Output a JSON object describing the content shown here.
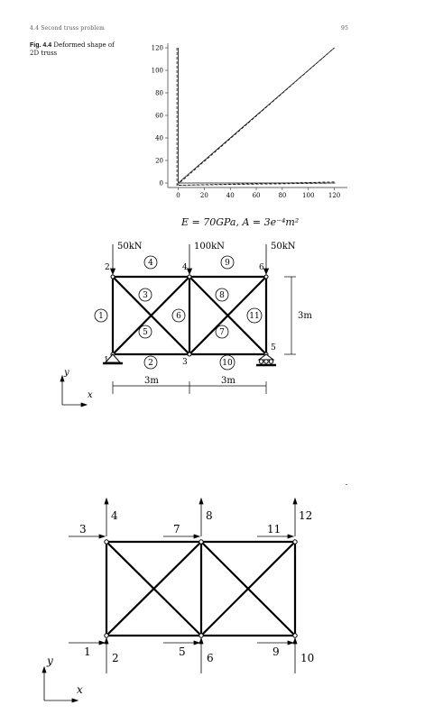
{
  "header": {
    "left": "4.4 Second truss problem",
    "right": "95"
  },
  "figure_caption": {
    "label": "Fig. 4.4",
    "text": "Deformed shape of 2D truss"
  },
  "chart_data": {
    "type": "line",
    "title": "",
    "xlabel": "",
    "ylabel": "",
    "xlim": [
      -8,
      130
    ],
    "ylim": [
      -4,
      124
    ],
    "x_ticks": [
      "0",
      "20",
      "40",
      "60",
      "80",
      "100",
      "120"
    ],
    "y_ticks": [
      "0",
      "20",
      "40",
      "60",
      "80",
      "100",
      "120"
    ],
    "series": [
      {
        "style": "solid",
        "points": [
          [
            0,
            120
          ],
          [
            0,
            0
          ]
        ]
      },
      {
        "style": "solid",
        "points": [
          [
            0,
            0
          ],
          [
            120,
            120
          ]
        ]
      },
      {
        "style": "solid",
        "points": [
          [
            0,
            0
          ],
          [
            120,
            0
          ]
        ]
      },
      {
        "style": "dashed",
        "points": [
          [
            -1,
            120
          ],
          [
            -1,
            -2
          ],
          [
            122,
            0
          ]
        ]
      },
      {
        "style": "dashed",
        "points": [
          [
            -1,
            -2
          ],
          [
            120,
            120
          ]
        ]
      },
      {
        "style": "dashed",
        "points": [
          [
            0,
            -2
          ],
          [
            120,
            1
          ]
        ]
      }
    ],
    "grid": false
  },
  "equation": "E = 70GPa, A = 3e⁻⁴m²",
  "truss1": {
    "loads": [
      "50kN",
      "100kN",
      "50kN"
    ],
    "node_labels": [
      "1",
      "2",
      "3",
      "4",
      "5",
      "6"
    ],
    "element_labels": [
      "1",
      "2",
      "3",
      "4",
      "5",
      "6",
      "7",
      "8",
      "9",
      "10",
      "11"
    ],
    "height_label": "3m",
    "span_labels": [
      "3m",
      "3m"
    ],
    "axis_y": "y",
    "axis_x": "x"
  },
  "truss2": {
    "dof_labels": [
      "1",
      "2",
      "3",
      "4",
      "5",
      "6",
      "7",
      "8",
      "9",
      "10",
      "11",
      "12"
    ],
    "axis_y": "y",
    "axis_x": "x"
  }
}
